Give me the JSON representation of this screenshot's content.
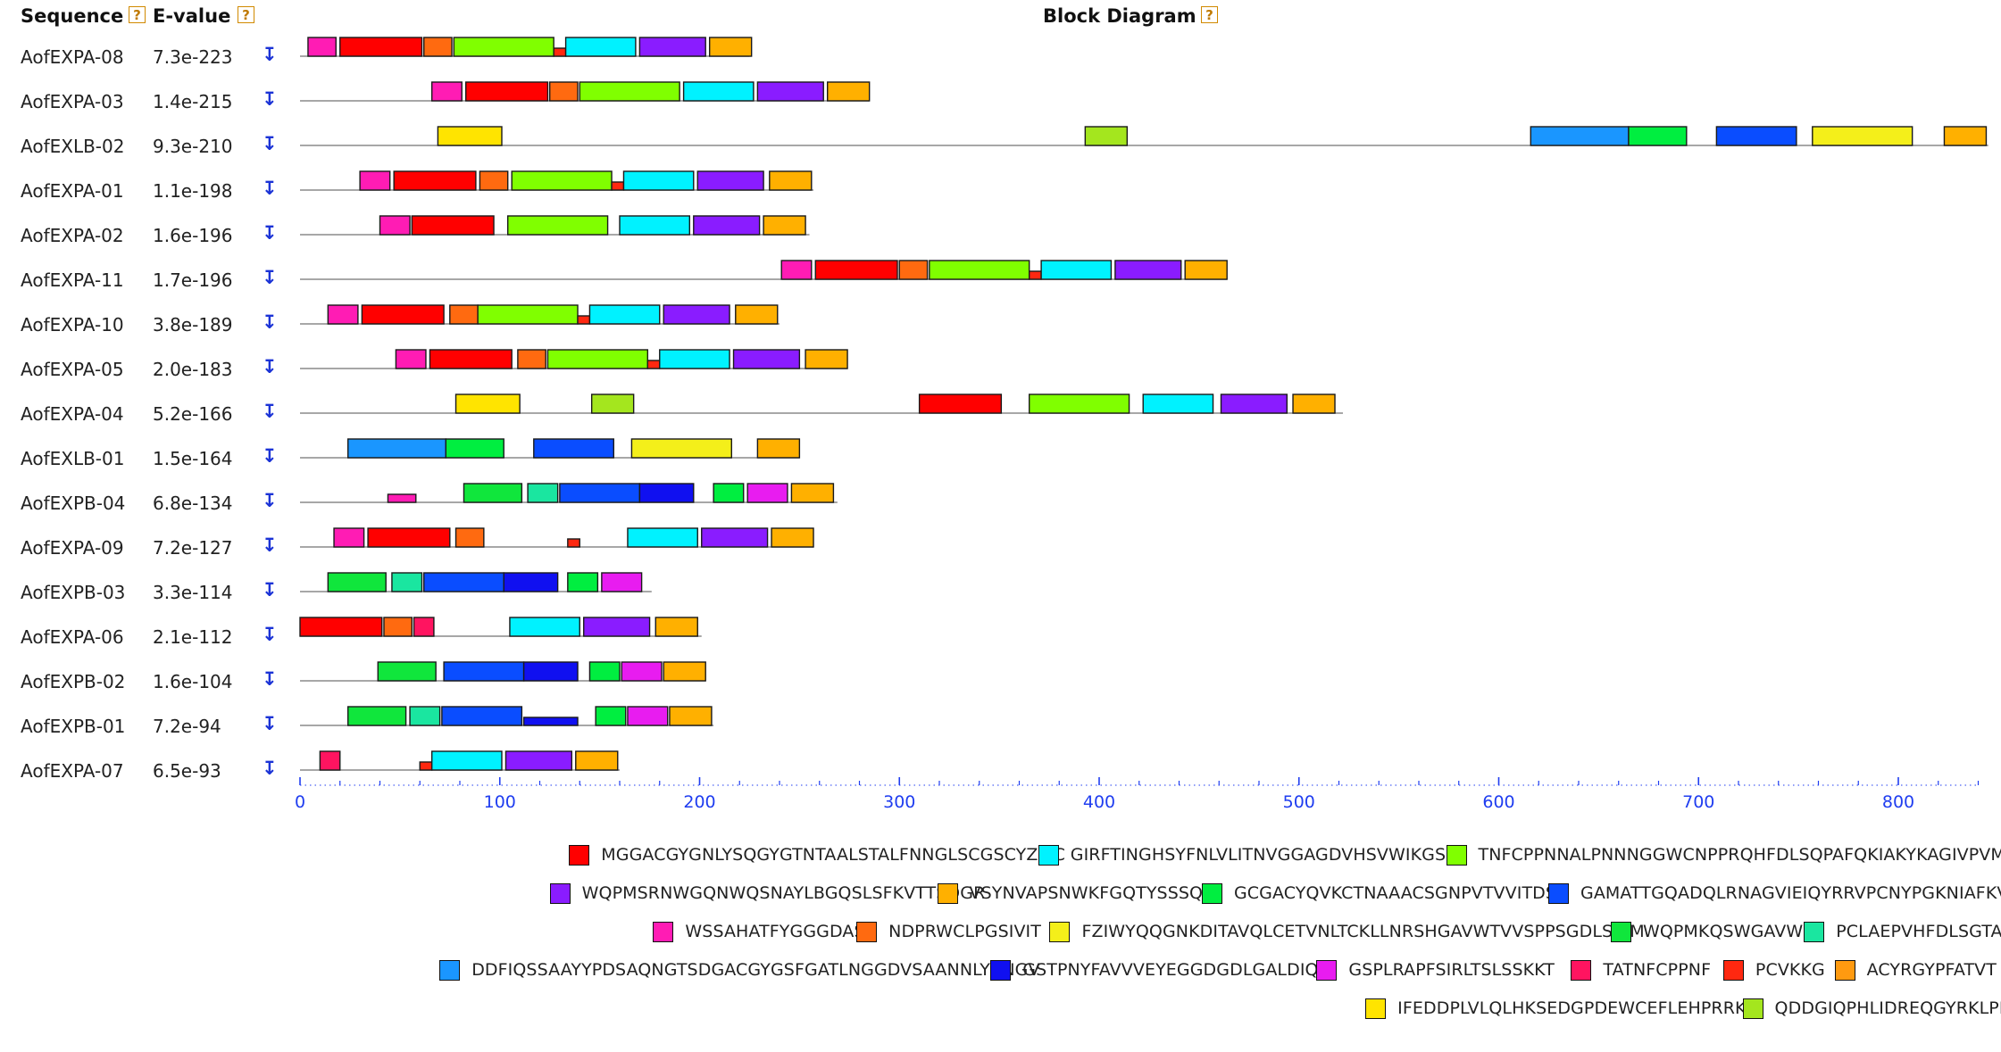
{
  "header": {
    "sequence_label": "Sequence",
    "evalue_label": "E-value",
    "diagram_label": "Block Diagram",
    "help_glyph": "?"
  },
  "download_glyph": "↧",
  "chart_data": {
    "type": "block-diagram",
    "axis": {
      "min": 0,
      "max": 840,
      "major_ticks": [
        0,
        100,
        200,
        300,
        400,
        500,
        600,
        700,
        800
      ],
      "minor_step": 20
    },
    "motifs": [
      {
        "id": "m1",
        "color": "#ff0000",
        "sequence": "MGGACGYGNLYSQGYGTNTAALSTALFNNGLSCGSCYZIKC"
      },
      {
        "id": "m2",
        "color": "#00f2ff",
        "sequence": "GIRFTINGHSYFNLVLITNVGGAGDVHSVWIKGSK"
      },
      {
        "id": "m3",
        "color": "#80ff00",
        "sequence": "TNFCPPNNALPNNNGGWCNPPRQHFDLSQPAFQKIAKYKAGIVPVMYRRV"
      },
      {
        "id": "m4",
        "color": "#8a1cff",
        "sequence": "WQPMSRNWGQNWQSNAYLBGQSLSFKVTTSDGR"
      },
      {
        "id": "m5",
        "color": "#ffb000",
        "sequence": "VSYNVAPSNWKFGQTYSSSQF"
      },
      {
        "id": "m6",
        "color": "#00ee40",
        "sequence": "GCGACYQVKCTNAAACSGNPVTVVITDSC"
      },
      {
        "id": "m7",
        "color": "#0a4dff",
        "sequence": "GAMATTGQADQLRNAGVIEIQYRRVPCNYPGKNIAFKVDE"
      },
      {
        "id": "m8",
        "color": "#ff1cb4",
        "sequence": "WSSAHATFYGGGDAS"
      },
      {
        "id": "m9",
        "color": "#ff6a10",
        "sequence": "NDPRWCLPGSIVIT"
      },
      {
        "id": "m10",
        "color": "#f4ef1a",
        "sequence": "FZIWYQQGNKDITAVQLCETVNLTCKLLNRSHGAVWTVVSPPSGDLSIRM"
      },
      {
        "id": "m11",
        "color": "#10e63c",
        "sequence": "WQPMKQSWGAVWKL"
      },
      {
        "id": "m12",
        "color": "#1ae6a0",
        "sequence": "PCLAEPVHFDLSGTA"
      },
      {
        "id": "m13",
        "color": "#1a96ff",
        "sequence": "DDFIQSSAAYYPDSAQNGTSDGACGYGSFGATLNGGDVSAANNLYRNGV"
      },
      {
        "id": "m14",
        "color": "#1010f0",
        "sequence": "GSTPNYFAVVVEYEGGDGDLGALDIQQ"
      },
      {
        "id": "m15",
        "color": "#e81cf0",
        "sequence": "GSPLRAPFSIRLTSLSSKKT"
      },
      {
        "id": "m16",
        "color": "#ff1460",
        "sequence": "TATNFCPPNF"
      },
      {
        "id": "m17",
        "color": "#ff2810",
        "sequence": "PCVKKG"
      },
      {
        "id": "m18",
        "color": "#ff9a10",
        "sequence": "ACYRGYPFATVT"
      },
      {
        "id": "m19",
        "color": "#ffe400",
        "sequence": "IFEDDPLVLQLHKSEDGPDEWCEFLEHPRRKC"
      },
      {
        "id": "m20",
        "color": "#a4e61e",
        "sequence": "QDDGIQPHLIDREQGYRKLPE"
      }
    ],
    "sequences": [
      {
        "name": "AofEXPA-08",
        "evalue": "7.3e-223",
        "length": 225,
        "blocks": [
          {
            "m": "m8",
            "s": 4,
            "e": 18
          },
          {
            "m": "m1",
            "s": 20,
            "e": 61
          },
          {
            "m": "m9",
            "s": 62,
            "e": 76
          },
          {
            "m": "m3",
            "s": 77,
            "e": 127
          },
          {
            "m": "m17",
            "s": 127,
            "e": 133,
            "small": true
          },
          {
            "m": "m2",
            "s": 133,
            "e": 168
          },
          {
            "m": "m4",
            "s": 170,
            "e": 203
          },
          {
            "m": "m5",
            "s": 205,
            "e": 226
          }
        ]
      },
      {
        "name": "AofEXPA-03",
        "evalue": "1.4e-215",
        "length": 285,
        "blocks": [
          {
            "m": "m8",
            "s": 66,
            "e": 81
          },
          {
            "m": "m1",
            "s": 83,
            "e": 124
          },
          {
            "m": "m9",
            "s": 125,
            "e": 139
          },
          {
            "m": "m3",
            "s": 140,
            "e": 190
          },
          {
            "m": "m2",
            "s": 192,
            "e": 227
          },
          {
            "m": "m4",
            "s": 229,
            "e": 262
          },
          {
            "m": "m5",
            "s": 264,
            "e": 285
          }
        ]
      },
      {
        "name": "AofEXLB-02",
        "evalue": "9.3e-210",
        "length": 845,
        "blocks": [
          {
            "m": "m19",
            "s": 69,
            "e": 101
          },
          {
            "m": "m20",
            "s": 393,
            "e": 414
          },
          {
            "m": "m13",
            "s": 616,
            "e": 665
          },
          {
            "m": "m6",
            "s": 665,
            "e": 694
          },
          {
            "m": "m7",
            "s": 709,
            "e": 749
          },
          {
            "m": "m10",
            "s": 757,
            "e": 807
          },
          {
            "m": "m5",
            "s": 823,
            "e": 844
          }
        ]
      },
      {
        "name": "AofEXPA-01",
        "evalue": "1.1e-198",
        "length": 257,
        "blocks": [
          {
            "m": "m8",
            "s": 30,
            "e": 45
          },
          {
            "m": "m1",
            "s": 47,
            "e": 88
          },
          {
            "m": "m9",
            "s": 90,
            "e": 104
          },
          {
            "m": "m3",
            "s": 106,
            "e": 156
          },
          {
            "m": "m17",
            "s": 156,
            "e": 162,
            "small": true
          },
          {
            "m": "m2",
            "s": 162,
            "e": 197
          },
          {
            "m": "m4",
            "s": 199,
            "e": 232
          },
          {
            "m": "m5",
            "s": 235,
            "e": 256
          }
        ]
      },
      {
        "name": "AofEXPA-02",
        "evalue": "1.6e-196",
        "length": 255,
        "blocks": [
          {
            "m": "m8",
            "s": 40,
            "e": 55
          },
          {
            "m": "m1",
            "s": 56,
            "e": 97
          },
          {
            "m": "m3",
            "s": 104,
            "e": 154
          },
          {
            "m": "m2",
            "s": 160,
            "e": 195
          },
          {
            "m": "m4",
            "s": 197,
            "e": 230
          },
          {
            "m": "m5",
            "s": 232,
            "e": 253
          }
        ]
      },
      {
        "name": "AofEXPA-11",
        "evalue": "1.7e-196",
        "length": 464,
        "blocks": [
          {
            "m": "m8",
            "s": 241,
            "e": 256
          },
          {
            "m": "m1",
            "s": 258,
            "e": 299
          },
          {
            "m": "m9",
            "s": 300,
            "e": 314
          },
          {
            "m": "m3",
            "s": 315,
            "e": 365
          },
          {
            "m": "m17",
            "s": 365,
            "e": 371,
            "small": true
          },
          {
            "m": "m2",
            "s": 371,
            "e": 406
          },
          {
            "m": "m4",
            "s": 408,
            "e": 441
          },
          {
            "m": "m5",
            "s": 443,
            "e": 464
          }
        ]
      },
      {
        "name": "AofEXPA-10",
        "evalue": "3.8e-189",
        "length": 240,
        "blocks": [
          {
            "m": "m8",
            "s": 14,
            "e": 29
          },
          {
            "m": "m1",
            "s": 31,
            "e": 72
          },
          {
            "m": "m9",
            "s": 75,
            "e": 89
          },
          {
            "m": "m3",
            "s": 89,
            "e": 139
          },
          {
            "m": "m17",
            "s": 139,
            "e": 145,
            "small": true
          },
          {
            "m": "m2",
            "s": 145,
            "e": 180
          },
          {
            "m": "m4",
            "s": 182,
            "e": 215
          },
          {
            "m": "m5",
            "s": 218,
            "e": 239
          }
        ]
      },
      {
        "name": "AofEXPA-05",
        "evalue": "2.0e-183",
        "length": 274,
        "blocks": [
          {
            "m": "m8",
            "s": 48,
            "e": 63
          },
          {
            "m": "m1",
            "s": 65,
            "e": 106
          },
          {
            "m": "m9",
            "s": 109,
            "e": 123
          },
          {
            "m": "m3",
            "s": 124,
            "e": 174
          },
          {
            "m": "m17",
            "s": 174,
            "e": 180,
            "small": true
          },
          {
            "m": "m2",
            "s": 180,
            "e": 215
          },
          {
            "m": "m4",
            "s": 217,
            "e": 250
          },
          {
            "m": "m5",
            "s": 253,
            "e": 274
          }
        ]
      },
      {
        "name": "AofEXPA-04",
        "evalue": "5.2e-166",
        "length": 522,
        "blocks": [
          {
            "m": "m19",
            "s": 78,
            "e": 110
          },
          {
            "m": "m20",
            "s": 146,
            "e": 167
          },
          {
            "m": "m1",
            "s": 310,
            "e": 351
          },
          {
            "m": "m3",
            "s": 365,
            "e": 415
          },
          {
            "m": "m2",
            "s": 422,
            "e": 457
          },
          {
            "m": "m4",
            "s": 461,
            "e": 494
          },
          {
            "m": "m5",
            "s": 497,
            "e": 518
          }
        ]
      },
      {
        "name": "AofEXLB-01",
        "evalue": "1.5e-164",
        "length": 250,
        "blocks": [
          {
            "m": "m13",
            "s": 24,
            "e": 73
          },
          {
            "m": "m6",
            "s": 73,
            "e": 102
          },
          {
            "m": "m7",
            "s": 117,
            "e": 157
          },
          {
            "m": "m10",
            "s": 166,
            "e": 216
          },
          {
            "m": "m5",
            "s": 229,
            "e": 250
          }
        ]
      },
      {
        "name": "AofEXPB-04",
        "evalue": "6.8e-134",
        "length": 269,
        "blocks": [
          {
            "m": "m8",
            "s": 44,
            "e": 58,
            "small": true
          },
          {
            "m": "m11",
            "s": 82,
            "e": 111
          },
          {
            "m": "m12",
            "s": 114,
            "e": 129
          },
          {
            "m": "m7",
            "s": 130,
            "e": 170
          },
          {
            "m": "m14",
            "s": 170,
            "e": 197
          },
          {
            "m": "m6",
            "s": 207,
            "e": 222
          },
          {
            "m": "m15",
            "s": 224,
            "e": 244
          },
          {
            "m": "m5",
            "s": 246,
            "e": 267
          }
        ]
      },
      {
        "name": "AofEXPA-09",
        "evalue": "7.2e-127",
        "length": 257,
        "blocks": [
          {
            "m": "m8",
            "s": 17,
            "e": 32
          },
          {
            "m": "m1",
            "s": 34,
            "e": 75
          },
          {
            "m": "m9",
            "s": 78,
            "e": 92
          },
          {
            "m": "m17",
            "s": 134,
            "e": 140,
            "small": true
          },
          {
            "m": "m2",
            "s": 164,
            "e": 199
          },
          {
            "m": "m4",
            "s": 201,
            "e": 234
          },
          {
            "m": "m5",
            "s": 236,
            "e": 257
          }
        ]
      },
      {
        "name": "AofEXPB-03",
        "evalue": "3.3e-114",
        "length": 176,
        "blocks": [
          {
            "m": "m11",
            "s": 14,
            "e": 43
          },
          {
            "m": "m12",
            "s": 46,
            "e": 61
          },
          {
            "m": "m7",
            "s": 62,
            "e": 102
          },
          {
            "m": "m14",
            "s": 102,
            "e": 129
          },
          {
            "m": "m6",
            "s": 134,
            "e": 149
          },
          {
            "m": "m15",
            "s": 151,
            "e": 171
          }
        ]
      },
      {
        "name": "AofEXPA-06",
        "evalue": "2.1e-112",
        "length": 201,
        "blocks": [
          {
            "m": "m1",
            "s": 0,
            "e": 41
          },
          {
            "m": "m9",
            "s": 42,
            "e": 56
          },
          {
            "m": "m16",
            "s": 57,
            "e": 67
          },
          {
            "m": "m2",
            "s": 105,
            "e": 140
          },
          {
            "m": "m4",
            "s": 142,
            "e": 175
          },
          {
            "m": "m5",
            "s": 178,
            "e": 199
          }
        ]
      },
      {
        "name": "AofEXPB-02",
        "evalue": "1.6e-104",
        "length": 203,
        "blocks": [
          {
            "m": "m11",
            "s": 39,
            "e": 68
          },
          {
            "m": "m7",
            "s": 72,
            "e": 112
          },
          {
            "m": "m14",
            "s": 112,
            "e": 139
          },
          {
            "m": "m6",
            "s": 145,
            "e": 160
          },
          {
            "m": "m15",
            "s": 161,
            "e": 181
          },
          {
            "m": "m5",
            "s": 182,
            "e": 203
          }
        ]
      },
      {
        "name": "AofEXPB-01",
        "evalue": "7.2e-94",
        "length": 207,
        "blocks": [
          {
            "m": "m11",
            "s": 24,
            "e": 53
          },
          {
            "m": "m12",
            "s": 55,
            "e": 70
          },
          {
            "m": "m7",
            "s": 71,
            "e": 111
          },
          {
            "m": "m14",
            "s": 112,
            "e": 139,
            "small": true
          },
          {
            "m": "m6",
            "s": 148,
            "e": 163
          },
          {
            "m": "m15",
            "s": 164,
            "e": 184
          },
          {
            "m": "m5",
            "s": 185,
            "e": 206
          }
        ]
      },
      {
        "name": "AofEXPA-07",
        "evalue": "6.5e-93",
        "length": 160,
        "blocks": [
          {
            "m": "m16",
            "s": 10,
            "e": 20
          },
          {
            "m": "m17",
            "s": 60,
            "e": 66,
            "small": true
          },
          {
            "m": "m2",
            "s": 66,
            "e": 101
          },
          {
            "m": "m4",
            "s": 103,
            "e": 136
          },
          {
            "m": "m5",
            "s": 138,
            "e": 159
          }
        ]
      }
    ]
  }
}
